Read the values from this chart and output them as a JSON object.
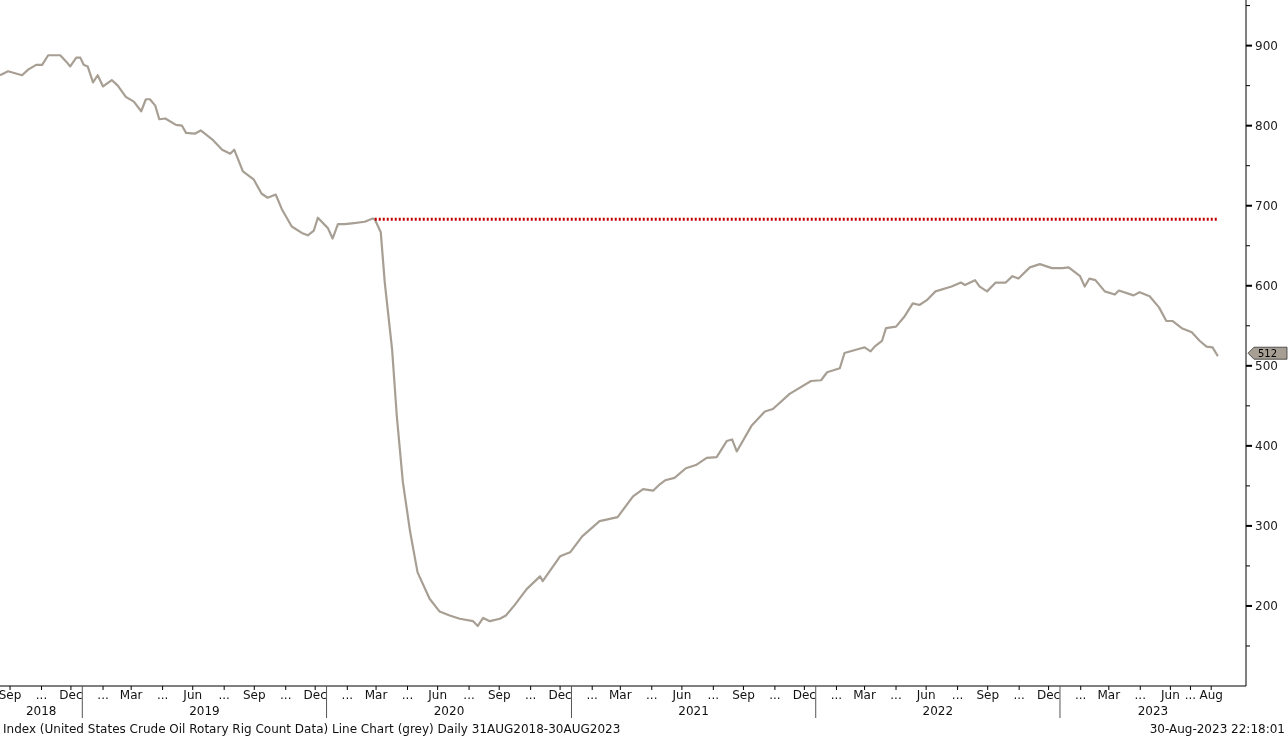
{
  "chart_data": {
    "type": "line",
    "xlim": [
      "2018-08-31",
      "2023-10-06"
    ],
    "ylim": [
      100,
      957
    ],
    "yticks": [
      {
        "value": 150,
        "label": null
      },
      200,
      {
        "value": 250,
        "label": null
      },
      300,
      {
        "value": 350,
        "label": null
      },
      400,
      {
        "value": 450,
        "label": null
      },
      500,
      {
        "value": 550,
        "label": null
      },
      600,
      {
        "value": 650,
        "label": null
      },
      700,
      {
        "value": 750,
        "label": null
      },
      800,
      {
        "value": 850,
        "label": null
      },
      900,
      {
        "value": 950,
        "label": null
      }
    ],
    "xticks": [
      {
        "value": "2018-09-15",
        "label": "Sep"
      },
      {
        "value": "2018-11-01",
        "label": "..."
      },
      {
        "value": "2018-12-15",
        "label": "Dec"
      },
      {
        "value": "2019-02-01",
        "label": "..."
      },
      {
        "value": "2019-03-15",
        "label": "Mar"
      },
      {
        "value": "2019-05-01",
        "label": "..."
      },
      {
        "value": "2019-06-15",
        "label": "Jun"
      },
      {
        "value": "2019-08-01",
        "label": "..."
      },
      {
        "value": "2019-09-15",
        "label": "Sep"
      },
      {
        "value": "2019-11-01",
        "label": "..."
      },
      {
        "value": "2019-12-15",
        "label": "Dec"
      },
      {
        "value": "2020-02-01",
        "label": "..."
      },
      {
        "value": "2020-03-15",
        "label": "Mar"
      },
      {
        "value": "2020-05-01",
        "label": "..."
      },
      {
        "value": "2020-06-15",
        "label": "Jun"
      },
      {
        "value": "2020-08-01",
        "label": "..."
      },
      {
        "value": "2020-09-15",
        "label": "Sep"
      },
      {
        "value": "2020-11-01",
        "label": "..."
      },
      {
        "value": "2020-12-15",
        "label": "Dec"
      },
      {
        "value": "2021-02-01",
        "label": "..."
      },
      {
        "value": "2021-03-15",
        "label": "Mar"
      },
      {
        "value": "2021-05-01",
        "label": "..."
      },
      {
        "value": "2021-06-15",
        "label": "Jun"
      },
      {
        "value": "2021-08-01",
        "label": "..."
      },
      {
        "value": "2021-09-15",
        "label": "Sep"
      },
      {
        "value": "2021-11-01",
        "label": "..."
      },
      {
        "value": "2021-12-15",
        "label": "Dec"
      },
      {
        "value": "2022-02-01",
        "label": "..."
      },
      {
        "value": "2022-03-15",
        "label": "Mar"
      },
      {
        "value": "2022-05-01",
        "label": "..."
      },
      {
        "value": "2022-06-15",
        "label": "Jun"
      },
      {
        "value": "2022-08-01",
        "label": "..."
      },
      {
        "value": "2022-09-15",
        "label": "Sep"
      },
      {
        "value": "2022-11-01",
        "label": "..."
      },
      {
        "value": "2022-12-15",
        "label": "Dec"
      },
      {
        "value": "2023-02-01",
        "label": "..."
      },
      {
        "value": "2023-03-15",
        "label": "Mar"
      },
      {
        "value": "2023-05-01",
        "label": "..."
      },
      {
        "value": "2023-06-15",
        "label": "Jun"
      },
      {
        "value": "2023-07-15",
        "label": "..."
      },
      {
        "value": "2023-08-15",
        "label": "Aug"
      }
    ],
    "series": [
      {
        "color": "#a89f94",
        "x": [
          "2018-08-31",
          "2018-09-12",
          "2018-10-03",
          "2018-10-12",
          "2018-10-24",
          "2018-11-02",
          "2018-11-11",
          "2018-11-21",
          "2018-11-29",
          "2018-12-08",
          "2018-12-14",
          "2018-12-23",
          "2018-12-29",
          "2019-01-03",
          "2019-01-09",
          "2019-01-17",
          "2019-01-24",
          "2019-02-01",
          "2019-02-14",
          "2019-02-23",
          "2019-03-07",
          "2019-03-19",
          "2019-03-30",
          "2019-04-06",
          "2019-04-12",
          "2019-04-20",
          "2019-04-26",
          "2019-05-05",
          "2019-05-21",
          "2019-05-30",
          "2019-06-05",
          "2019-06-18",
          "2019-06-27",
          "2019-07-14",
          "2019-07-29",
          "2019-08-10",
          "2019-08-16",
          "2019-08-29",
          "2019-09-14",
          "2019-09-26",
          "2019-10-05",
          "2019-10-17",
          "2019-10-26",
          "2019-11-10",
          "2019-11-25",
          "2019-12-04",
          "2019-12-13",
          "2019-12-19",
          "2020-01-03",
          "2020-01-10",
          "2020-01-18",
          "2020-01-28",
          "2020-02-08",
          "2020-02-27",
          "2020-03-10",
          "2020-03-13",
          "2020-03-22",
          "2020-03-28",
          "2020-04-08",
          "2020-04-15",
          "2020-04-24",
          "2020-05-05",
          "2020-05-16",
          "2020-06-03",
          "2020-06-18",
          "2020-07-03",
          "2020-07-18",
          "2020-08-07",
          "2020-08-14",
          "2020-08-22",
          "2020-09-01",
          "2020-09-16",
          "2020-09-25",
          "2020-10-08",
          "2020-10-26",
          "2020-11-15",
          "2020-11-19",
          "2020-12-15",
          "2020-12-30",
          "2021-01-17",
          "2021-02-12",
          "2021-03-11",
          "2021-04-03",
          "2021-04-18",
          "2021-05-03",
          "2021-05-13",
          "2021-05-21",
          "2021-06-04",
          "2021-06-21",
          "2021-07-06",
          "2021-07-22",
          "2021-08-06",
          "2021-08-21",
          "2021-08-29",
          "2021-09-05",
          "2021-09-27",
          "2021-10-17",
          "2021-10-29",
          "2021-11-23",
          "2021-12-25",
          "2022-01-09",
          "2022-01-18",
          "2022-02-06",
          "2022-02-13",
          "2022-03-06",
          "2022-03-15",
          "2022-03-24",
          "2022-03-30",
          "2022-04-10",
          "2022-04-16",
          "2022-05-01",
          "2022-05-14",
          "2022-05-26",
          "2022-06-05",
          "2022-06-16",
          "2022-06-29",
          "2022-07-23",
          "2022-08-06",
          "2022-08-12",
          "2022-08-27",
          "2022-09-03",
          "2022-09-14",
          "2022-09-27",
          "2022-10-12",
          "2022-10-22",
          "2022-10-31",
          "2022-11-17",
          "2022-12-02",
          "2022-12-20",
          "2023-01-05",
          "2023-01-14",
          "2023-01-31",
          "2023-02-07",
          "2023-02-14",
          "2023-02-23",
          "2023-03-09",
          "2023-03-24",
          "2023-03-30",
          "2023-04-21",
          "2023-04-30",
          "2023-05-15",
          "2023-05-29",
          "2023-06-09",
          "2023-06-18",
          "2023-07-02",
          "2023-07-17",
          "2023-07-29",
          "2023-08-08",
          "2023-08-17",
          "2023-08-25"
        ],
        "values": [
          863,
          868,
          863,
          870,
          876,
          876,
          888,
          888,
          888,
          880,
          874,
          885,
          885,
          876,
          874,
          854,
          863,
          849,
          857,
          850,
          836,
          830,
          818,
          833,
          833,
          825,
          808,
          809,
          801,
          800,
          791,
          790,
          794,
          783,
          770,
          765,
          770,
          743,
          733,
          715,
          710,
          714,
          696,
          674,
          666,
          663,
          669,
          685,
          672,
          659,
          677,
          677,
          678,
          680,
          684,
          683,
          667,
          604,
          520,
          437,
          355,
          292,
          242,
          209,
          193,
          188,
          184,
          181,
          175,
          185,
          181,
          184,
          188,
          201,
          221,
          237,
          231,
          262,
          267,
          287,
          306,
          311,
          337,
          346,
          344,
          352,
          357,
          360,
          372,
          376,
          385,
          386,
          406,
          408,
          393,
          425,
          443,
          446,
          465,
          481,
          482,
          492,
          497,
          516,
          521,
          523,
          518,
          524,
          531,
          547,
          549,
          562,
          578,
          576,
          582,
          593,
          599,
          604,
          601,
          607,
          599,
          593,
          604,
          604,
          612,
          609,
          623,
          627,
          622,
          622,
          623,
          612,
          599,
          609,
          607,
          593,
          589,
          594,
          588,
          592,
          587,
          573,
          556,
          556,
          547,
          542,
          531,
          524,
          523,
          512
        ]
      },
      {
        "color": "#c00000",
        "line_style": "dotted",
        "x": [
          "2020-03-13",
          "2023-08-25"
        ],
        "values": [
          683,
          683
        ]
      }
    ],
    "annotations": [
      "512",
      "2018",
      "2019",
      "2020",
      "2021",
      "2022",
      "2023",
      "Index (United States Crude Oil Rotary Rig Count Data) Line Chart (grey)  Daily 31AUG2018-30AUG2023",
      "30-Aug-2023 22:18:01"
    ]
  }
}
